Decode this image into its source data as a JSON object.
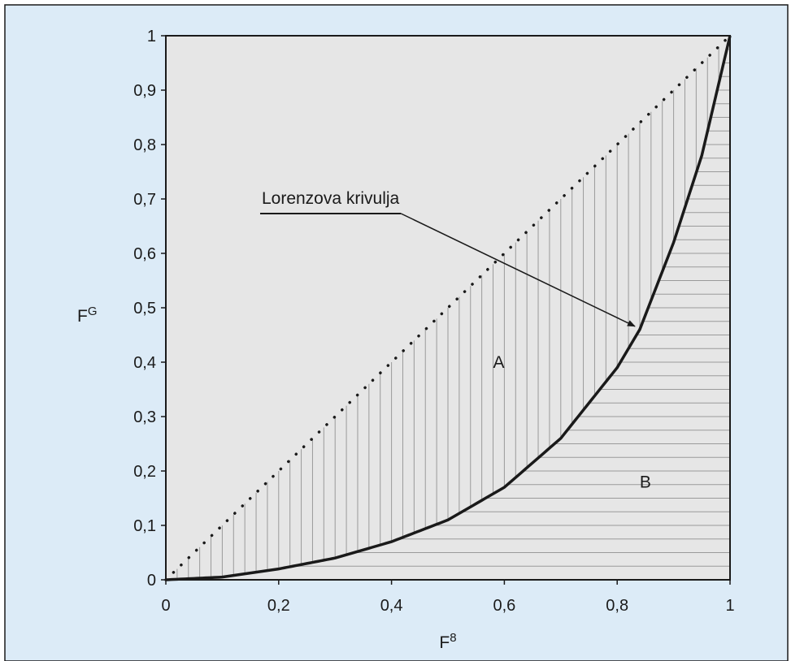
{
  "chart_data": {
    "type": "line",
    "xlabel": "F",
    "xlabel_sup": "8",
    "ylabel": "F",
    "ylabel_sup": "G",
    "xlim": [
      0,
      1
    ],
    "ylim": [
      0,
      1
    ],
    "xticks": [
      0,
      0.2,
      0.4,
      0.6,
      0.8,
      1
    ],
    "xtick_labels": [
      "0",
      "0,2",
      "0,4",
      "0,6",
      "0,8",
      "1"
    ],
    "yticks": [
      0,
      0.1,
      0.2,
      0.3,
      0.4,
      0.5,
      0.6,
      0.7,
      0.8,
      0.9,
      1
    ],
    "ytick_labels": [
      "0",
      "0,1",
      "0,2",
      "0,3",
      "0,4",
      "0,5",
      "0,6",
      "0,7",
      "0,8",
      "0,9",
      "1"
    ],
    "grid": false,
    "series": [
      {
        "style": "dotted",
        "x": [
          0,
          1
        ],
        "y": [
          0,
          1
        ]
      },
      {
        "style": "solid",
        "x": [
          0,
          0.1,
          0.2,
          0.3,
          0.4,
          0.5,
          0.6,
          0.7,
          0.8,
          0.84,
          0.9,
          0.95,
          1
        ],
        "y": [
          0,
          0.005,
          0.02,
          0.04,
          0.07,
          0.11,
          0.17,
          0.26,
          0.39,
          0.46,
          0.62,
          0.78,
          1
        ]
      }
    ],
    "regions": [
      {
        "label": "A",
        "between": "equality line and Lorenz curve",
        "hatch": "vertical",
        "label_at": [
          0.59,
          0.4
        ]
      },
      {
        "label": "B",
        "between": "Lorenz curve and x-axis",
        "hatch": "horizontal",
        "label_at": [
          0.85,
          0.18
        ]
      }
    ],
    "annotation": {
      "text": "Lorenzova krivulja",
      "text_at": [
        0.17,
        0.7
      ],
      "arrow_to": [
        0.84,
        0.46
      ]
    },
    "colors": {
      "frame_background": "#dcebf7",
      "plot_background": "#e6e6e6",
      "curve": "#1a1a1a",
      "hatch": "#9a9a9a"
    }
  }
}
